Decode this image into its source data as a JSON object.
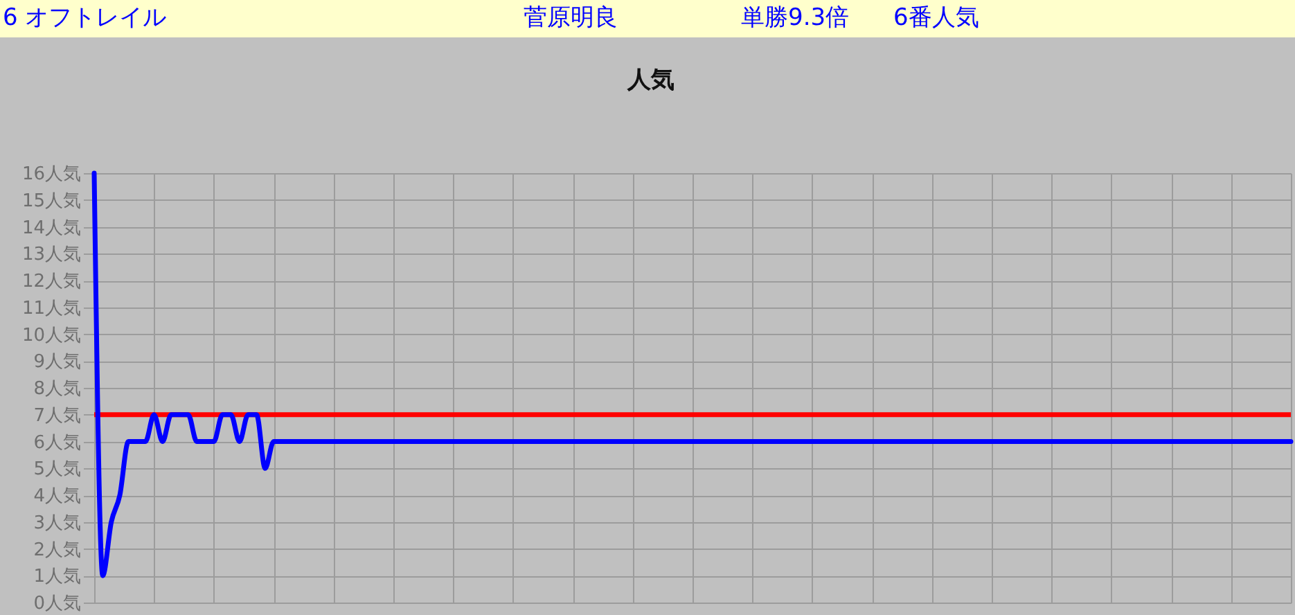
{
  "chart_data": {
    "type": "line",
    "title": "人気",
    "annotations": [
      "6 オフトレイル",
      "菅原明良",
      "単勝9.3倍",
      "6番人気"
    ],
    "categories": [
      null,
      null,
      null,
      null,
      null,
      null,
      null,
      null,
      null,
      null,
      null,
      null,
      null,
      null,
      null,
      null,
      null,
      null,
      null,
      null,
      null,
      null,
      null,
      null,
      null,
      null,
      null,
      null,
      null,
      null,
      null,
      null,
      null,
      null,
      null,
      null,
      null,
      null,
      null,
      null,
      null,
      null,
      null,
      null,
      null,
      null,
      null,
      null,
      null,
      null,
      null,
      null,
      null,
      null,
      null,
      null,
      null,
      null,
      null,
      null,
      null,
      null,
      null,
      null,
      null,
      null,
      null,
      null,
      null,
      null,
      null,
      null,
      null,
      null,
      null,
      null,
      null,
      null,
      null,
      null,
      null,
      null,
      null,
      null,
      null,
      null,
      null,
      null,
      null,
      null,
      null,
      null,
      null,
      null,
      null,
      null,
      null,
      null,
      null,
      null,
      null,
      null,
      null,
      null,
      null,
      null,
      null,
      null,
      null,
      null,
      null,
      null,
      null,
      null,
      null,
      null,
      null,
      null,
      null,
      null,
      null,
      null,
      null,
      null,
      null,
      null,
      null,
      null,
      null,
      null,
      null,
      null,
      null,
      null,
      null,
      null,
      null,
      null,
      null,
      null,
      null
    ],
    "series": [
      {
        "color": "#0000ff",
        "values": [
          16,
          1,
          3,
          4,
          6,
          6,
          6,
          7,
          6,
          7,
          7,
          7,
          6,
          6,
          6,
          7,
          7,
          6,
          7,
          7,
          5,
          6,
          6,
          6,
          6,
          6,
          6,
          6,
          6,
          6,
          6,
          6,
          6,
          6,
          6,
          6,
          6,
          6,
          6,
          6,
          6,
          6,
          6,
          6,
          6,
          6,
          6,
          6,
          6,
          6,
          6,
          6,
          6,
          6,
          6,
          6,
          6,
          6,
          6,
          6,
          6,
          6,
          6,
          6,
          6,
          6,
          6,
          6,
          6,
          6,
          6,
          6,
          6,
          6,
          6,
          6,
          6,
          6,
          6,
          6,
          6,
          6,
          6,
          6,
          6,
          6,
          6,
          6,
          6,
          6,
          6,
          6,
          6,
          6,
          6,
          6,
          6,
          6,
          6,
          6,
          6,
          6,
          6,
          6,
          6,
          6,
          6,
          6,
          6,
          6,
          6,
          6,
          6,
          6,
          6,
          6,
          6,
          6,
          6,
          6,
          6,
          6,
          6,
          6,
          6,
          6,
          6,
          6,
          6,
          6,
          6,
          6,
          6,
          6,
          6,
          6,
          6,
          6,
          6,
          6,
          6
        ]
      }
    ],
    "ylim": [
      0,
      16
    ],
    "yticks": [
      {
        "value": 0,
        "label": "0人気"
      },
      {
        "value": 1,
        "label": "1人気"
      },
      {
        "value": 2,
        "label": "2人気"
      },
      {
        "value": 3,
        "label": "3人気"
      },
      {
        "value": 4,
        "label": "4人気"
      },
      {
        "value": 5,
        "label": "5人気"
      },
      {
        "value": 6,
        "label": "6人気"
      },
      {
        "value": 7,
        "label": "7人気"
      },
      {
        "value": 8,
        "label": "8人気"
      },
      {
        "value": 9,
        "label": "9人気"
      },
      {
        "value": 10,
        "label": "10人気"
      },
      {
        "value": 11,
        "label": "11人気"
      },
      {
        "value": 12,
        "label": "12人気"
      },
      {
        "value": 13,
        "label": "13人気"
      },
      {
        "value": 14,
        "label": "14人気"
      },
      {
        "value": 15,
        "label": "15人気"
      },
      {
        "value": 16,
        "label": "16人気"
      }
    ],
    "ref_lines": [
      {
        "axis": "y",
        "value": 7,
        "color": "#ff0000"
      }
    ],
    "grid": true,
    "tick_labels": "y"
  }
}
